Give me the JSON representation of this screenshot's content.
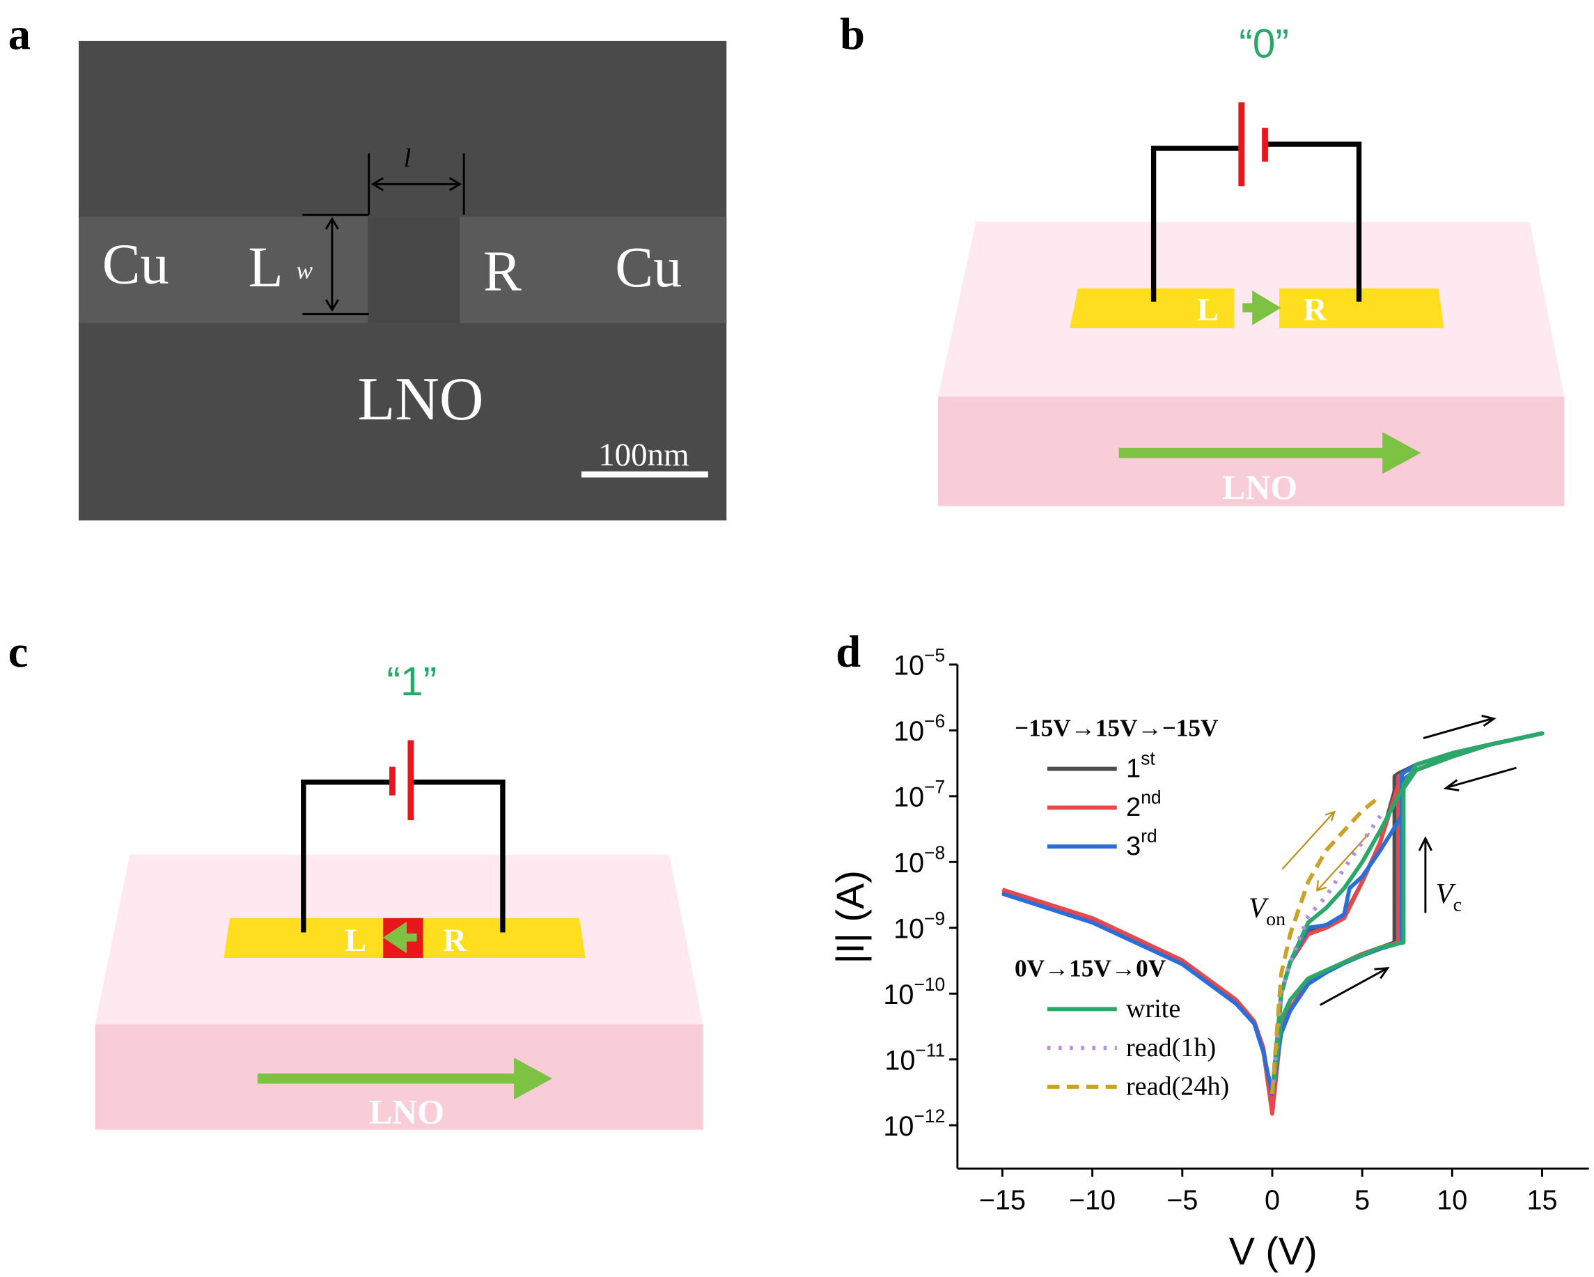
{
  "panels": {
    "a": {
      "label": "a",
      "cu_left": "Cu",
      "l_pad": "L",
      "width": "w",
      "length": "l",
      "r_pad": "R",
      "cu_right": "Cu",
      "substrate": "LNO",
      "scale_bar": "100nm"
    },
    "b": {
      "label": "b",
      "state": "“0”",
      "l_pad": "L",
      "r_pad": "R",
      "substrate": "LNO"
    },
    "c": {
      "label": "c",
      "state": "“1”",
      "l_pad": "L",
      "r_pad": "R",
      "substrate": "LNO"
    },
    "d": {
      "label": "d"
    }
  },
  "chart_data": {
    "type": "line",
    "x_label": "V (V)",
    "y_label": "|I| (A)",
    "yscale": "log",
    "xlim": [
      -17.5,
      17.6
    ],
    "ylim": [
      2.2e-13,
      1e-05
    ],
    "xticks": [
      {
        "value": -15,
        "label": "−15"
      },
      {
        "value": -10,
        "label": "−10"
      },
      {
        "value": -5,
        "label": "−5"
      },
      0,
      5,
      10,
      15
    ],
    "yticks": [
      {
        "value": 1e-12,
        "label": "10−12"
      },
      {
        "value": 1e-11,
        "label": "10−11"
      },
      {
        "value": 1e-10,
        "label": "10−10"
      },
      {
        "value": 1e-09,
        "label": "10−9"
      },
      {
        "value": 1e-08,
        "label": "10−8"
      },
      {
        "value": 1e-07,
        "label": "10−7"
      },
      {
        "value": 1e-06,
        "label": "10−6"
      },
      {
        "value": 1e-05,
        "label": "10−5"
      }
    ],
    "annotations": [
      {
        "text": "Von"
      },
      {
        "text": "Vc"
      }
    ],
    "series_groups": [
      {
        "title": "−15V→15V→−15V",
        "series": [
          {
            "name": "1st",
            "color": "#4d4d4d",
            "dash": "solid",
            "x": [
              -15,
              -10,
              -5,
              -2,
              -1,
              -0.5,
              0,
              0.5,
              1,
              2,
              3,
              4,
              5,
              6,
              6.8,
              6.8,
              7,
              8,
              10,
              12,
              15,
              12,
              10,
              8,
              7,
              6.8,
              6,
              5,
              4,
              3,
              2,
              1,
              0.5,
              0,
              -0.5,
              -1,
              -2,
              -5,
              -10,
              -15
            ],
            "values": [
              3.5e-09,
              1.3e-09,
              3e-10,
              7.6e-11,
              3.7e-11,
              1.5e-11,
              2e-12,
              3e-11,
              6e-11,
              1.5e-10,
              2.2e-10,
              3e-10,
              4e-10,
              5e-10,
              6e-10,
              2e-07,
              2.2e-07,
              3e-07,
              4.5e-07,
              6e-07,
              9e-07,
              6e-07,
              4e-07,
              2.5e-07,
              1.5e-07,
              1.2e-07,
              2e-08,
              5e-09,
              1.5e-09,
              1.1e-09,
              9e-10,
              3e-10,
              1e-10,
              2e-12,
              1.5e-11,
              3.7e-11,
              7.6e-11,
              3e-10,
              1.3e-09,
              3.5e-09
            ]
          },
          {
            "name": "2nd",
            "color": "#e8474b",
            "dash": "solid",
            "x": [
              -15,
              -10,
              -5,
              -2,
              -1,
              -0.5,
              0,
              0.5,
              1,
              2,
              3,
              4,
              5,
              6,
              7,
              7,
              8,
              10,
              12,
              15,
              12,
              10,
              8,
              7,
              6.9,
              6,
              5,
              4,
              3,
              2,
              1,
              0.5,
              0,
              -0.5,
              -1,
              -2,
              -5,
              -10,
              -15
            ],
            "values": [
              3.8e-09,
              1.4e-09,
              3.2e-10,
              8e-11,
              3.8e-11,
              1.4e-11,
              1.5e-12,
              3e-11,
              6e-11,
              1.5e-10,
              2.2e-10,
              3e-10,
              4e-10,
              5e-10,
              6e-10,
              2e-07,
              3e-07,
              4.5e-07,
              6e-07,
              9e-07,
              6e-07,
              4e-07,
              2.5e-07,
              1.5e-07,
              1.2e-07,
              2e-08,
              5e-09,
              1.4e-09,
              1e-09,
              8e-10,
              3e-10,
              1e-10,
              1.5e-12,
              1.5e-11,
              3.8e-11,
              8e-11,
              3.2e-10,
              1.4e-09,
              3.8e-09
            ]
          },
          {
            "name": "3rd",
            "color": "#2b6fd6",
            "dash": "solid",
            "x": [
              -15,
              -10,
              -5,
              -2,
              -1,
              -0.5,
              0,
              0.5,
              1,
              2,
              3,
              4,
              5,
              6,
              7.2,
              7.2,
              8,
              10,
              12,
              15,
              12,
              10,
              8,
              7.3,
              7.2,
              6,
              5,
              4.3,
              4,
              3,
              2,
              1,
              0.5,
              0,
              -0.5,
              -1,
              -2,
              -5,
              -10,
              -15
            ],
            "values": [
              3.3e-09,
              1.2e-09,
              2.8e-10,
              7e-11,
              3.5e-11,
              1.3e-11,
              3e-12,
              2.5e-11,
              5.5e-11,
              1.4e-10,
              2.1e-10,
              2.9e-10,
              3.8e-10,
              4.8e-10,
              6e-10,
              2.2e-07,
              3e-07,
              4.5e-07,
              6e-07,
              9e-07,
              6e-07,
              4e-07,
              2.5e-07,
              1.8e-07,
              5e-08,
              1.5e-08,
              6e-09,
              4e-09,
              1.6e-09,
              1.1e-09,
              1e-09,
              3e-10,
              1e-10,
              3e-12,
              1.3e-11,
              3.5e-11,
              7e-11,
              2.8e-10,
              1.2e-09,
              3.3e-09
            ]
          }
        ]
      },
      {
        "title": "0V→15V→0V",
        "series": [
          {
            "name": "write",
            "color": "#2aa86a",
            "dash": "solid",
            "x": [
              0,
              0.5,
              1,
              2,
              4,
              6,
              7.3,
              7.3,
              8,
              10,
              12,
              15,
              12,
              10,
              8,
              7,
              6,
              5,
              4,
              3,
              2,
              1,
              0.5,
              0
            ],
            "values": [
              3e-12,
              4e-11,
              8e-11,
              1.7e-10,
              3e-10,
              5e-10,
              6e-10,
              1.5e-07,
              3e-07,
              4.5e-07,
              6e-07,
              9e-07,
              6e-07,
              4e-07,
              2.5e-07,
              1e-07,
              3e-08,
              1e-08,
              4e-09,
              2e-09,
              1.2e-09,
              3e-10,
              1e-10,
              3e-12
            ]
          },
          {
            "name": "read(1h)",
            "color": "#b48ce0",
            "dash": "dotted",
            "x": [
              0,
              0.5,
              1,
              2,
              3,
              4,
              5,
              6
            ],
            "values": [
              3e-12,
              1e-10,
              3e-10,
              1.5e-09,
              3e-09,
              8e-09,
              2e-08,
              5e-08
            ]
          },
          {
            "name": "read(24h)",
            "color": "#c9a227",
            "dash": "dashed",
            "x": [
              0,
              0.5,
              1,
              2,
              3,
              4,
              5,
              6
            ],
            "values": [
              3e-12,
              2e-10,
              8e-10,
              5e-09,
              1.5e-08,
              3e-08,
              6e-08,
              1e-07
            ]
          }
        ]
      }
    ]
  }
}
